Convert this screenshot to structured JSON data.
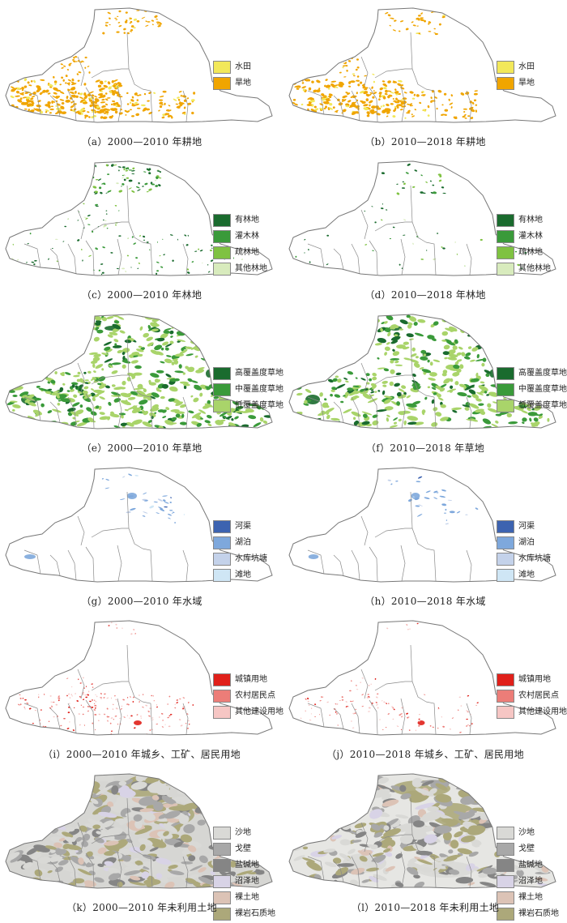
{
  "panels": [
    {
      "caption": "（a）2000—2010 年耕地",
      "theme": "cropland",
      "legend": [
        {
          "label": "水田",
          "color": "#f2e85a"
        },
        {
          "label": "旱地",
          "color": "#f0a500"
        }
      ]
    },
    {
      "caption": "（b）2010—2018 年耕地",
      "theme": "cropland",
      "legend": [
        {
          "label": "水田",
          "color": "#f2e85a"
        },
        {
          "label": "旱地",
          "color": "#f0a500"
        }
      ]
    },
    {
      "caption": "（c）2000—2010 年林地",
      "theme": "forest",
      "legend": [
        {
          "label": "有林地",
          "color": "#1a6b2e"
        },
        {
          "label": "灌木林",
          "color": "#3a9a3a"
        },
        {
          "label": "疏林地",
          "color": "#7fc241"
        },
        {
          "label": "其他林地",
          "color": "#d8ebbd"
        }
      ]
    },
    {
      "caption": "（d）2010—2018 年林地",
      "theme": "forest",
      "legend": [
        {
          "label": "有林地",
          "color": "#1a6b2e"
        },
        {
          "label": "灌木林",
          "color": "#3a9a3a"
        },
        {
          "label": "疏林地",
          "color": "#7fc241"
        },
        {
          "label": "其他林地",
          "color": "#d8ebbd"
        }
      ]
    },
    {
      "caption": "（e）2000—2010 年草地",
      "theme": "grass",
      "legend": [
        {
          "label": "高覆盖度草地",
          "color": "#1a6b2e"
        },
        {
          "label": "中覆盖度草地",
          "color": "#3a9a3a"
        },
        {
          "label": "低覆盖度草地",
          "color": "#a9d46a"
        }
      ]
    },
    {
      "caption": "（f）2010—2018 年草地",
      "theme": "grass",
      "legend": [
        {
          "label": "高覆盖度草地",
          "color": "#1a6b2e"
        },
        {
          "label": "中覆盖度草地",
          "color": "#3a9a3a"
        },
        {
          "label": "低覆盖度草地",
          "color": "#a9d46a"
        }
      ]
    },
    {
      "caption": "（g）2000—2010 年水域",
      "theme": "water",
      "legend": [
        {
          "label": "河渠",
          "color": "#3d63b0"
        },
        {
          "label": "湖泊",
          "color": "#7ea8dc"
        },
        {
          "label": "水库坑塘",
          "color": "#c4d2ea"
        },
        {
          "label": "滩地",
          "color": "#cfe6f5"
        }
      ]
    },
    {
      "caption": "（h）2010—2018 年水域",
      "theme": "water",
      "legend": [
        {
          "label": "河渠",
          "color": "#3d63b0"
        },
        {
          "label": "湖泊",
          "color": "#7ea8dc"
        },
        {
          "label": "水库坑塘",
          "color": "#c4d2ea"
        },
        {
          "label": "滩地",
          "color": "#cfe6f5"
        }
      ]
    },
    {
      "caption": "（i）2000—2010 年城乡、工矿、居民用地",
      "theme": "urban",
      "legend": [
        {
          "label": "城镇用地",
          "color": "#e0201a"
        },
        {
          "label": "农村居民点",
          "color": "#ec7d78"
        },
        {
          "label": "其他建设用地",
          "color": "#f6c6c4"
        }
      ]
    },
    {
      "caption": "（j）2010—2018 年城乡、工矿、居民用地",
      "theme": "urban",
      "legend": [
        {
          "label": "城镇用地",
          "color": "#e0201a"
        },
        {
          "label": "农村居民点",
          "color": "#ec7d78"
        },
        {
          "label": "其他建设用地",
          "color": "#f6c6c4"
        }
      ]
    },
    {
      "caption": "（k）2000—2010 年未利用土地",
      "theme": "unused",
      "legend": [
        {
          "label": "沙地",
          "color": "#d9d9d6"
        },
        {
          "label": "戈壁",
          "color": "#a8a8a8"
        },
        {
          "label": "盐碱地",
          "color": "#858585"
        },
        {
          "label": "沼泽地",
          "color": "#d8d3e6"
        },
        {
          "label": "裸土地",
          "color": "#dcc3b6"
        },
        {
          "label": "裸岩石质地",
          "color": "#aca87a"
        }
      ]
    },
    {
      "caption": "（l）2010—2018 年未利用土地",
      "theme": "unused",
      "legend": [
        {
          "label": "沙地",
          "color": "#d9d9d6"
        },
        {
          "label": "戈壁",
          "color": "#a8a8a8"
        },
        {
          "label": "盐碱地",
          "color": "#858585"
        },
        {
          "label": "沼泽地",
          "color": "#d8d3e6"
        },
        {
          "label": "裸土地",
          "color": "#dcc3b6"
        },
        {
          "label": "裸岩石质地",
          "color": "#aca87a"
        }
      ]
    }
  ]
}
